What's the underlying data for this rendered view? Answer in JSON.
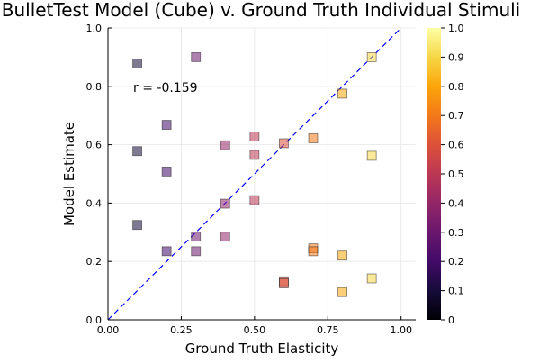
{
  "chart_data": {
    "type": "scatter",
    "title": "BulletTest Model (Cube) v. Ground Truth Individual Stimuli",
    "xlabel": "Ground Truth Elasticity",
    "ylabel": "Model Estimate",
    "xlim": [
      0,
      1.05
    ],
    "ylim": [
      0,
      1
    ],
    "xticks": [
      0,
      0.25,
      0.5,
      0.75,
      1
    ],
    "xtick_labels": [
      "0.00",
      "0.25",
      "0.50",
      "0.75",
      "1.00"
    ],
    "yticks": [
      0,
      0.2,
      0.4,
      0.6,
      0.8,
      1
    ],
    "ytick_labels": [
      "0.0",
      "0.2",
      "0.4",
      "0.6",
      "0.8",
      "1.0"
    ],
    "grid": true,
    "annotation": "r = -0.159",
    "reference_line": {
      "style": "dashed",
      "color": "#0000ff",
      "from": [
        0,
        0
      ],
      "to": [
        1,
        1
      ]
    },
    "colorbar": {
      "colormap": "inferno",
      "range": [
        0,
        1
      ],
      "ticks": [
        0,
        0.1,
        0.2,
        0.3,
        0.4,
        0.5,
        0.6,
        0.7,
        0.8,
        0.9,
        1
      ],
      "tick_labels": [
        "0",
        "0.1",
        "0.2",
        "0.3",
        "0.4",
        "0.5",
        "0.6",
        "0.7",
        "0.8",
        "0.9",
        "1.0"
      ]
    },
    "marker": {
      "shape": "square",
      "alpha": 0.55
    },
    "points": [
      {
        "x": 0.1,
        "y": 0.878
      },
      {
        "x": 0.1,
        "y": 0.578
      },
      {
        "x": 0.1,
        "y": 0.325
      },
      {
        "x": 0.2,
        "y": 0.668
      },
      {
        "x": 0.2,
        "y": 0.508
      },
      {
        "x": 0.2,
        "y": 0.235
      },
      {
        "x": 0.3,
        "y": 0.9
      },
      {
        "x": 0.3,
        "y": 0.285
      },
      {
        "x": 0.3,
        "y": 0.235
      },
      {
        "x": 0.4,
        "y": 0.598
      },
      {
        "x": 0.4,
        "y": 0.398
      },
      {
        "x": 0.4,
        "y": 0.285
      },
      {
        "x": 0.5,
        "y": 0.628
      },
      {
        "x": 0.5,
        "y": 0.565
      },
      {
        "x": 0.5,
        "y": 0.41
      },
      {
        "x": 0.6,
        "y": 0.605
      },
      {
        "x": 0.6,
        "y": 0.132
      },
      {
        "x": 0.6,
        "y": 0.125
      },
      {
        "x": 0.7,
        "y": 0.622
      },
      {
        "x": 0.7,
        "y": 0.245
      },
      {
        "x": 0.7,
        "y": 0.235
      },
      {
        "x": 0.8,
        "y": 0.775
      },
      {
        "x": 0.8,
        "y": 0.22
      },
      {
        "x": 0.8,
        "y": 0.095
      },
      {
        "x": 0.9,
        "y": 0.9
      },
      {
        "x": 0.9,
        "y": 0.562
      },
      {
        "x": 0.9,
        "y": 0.142
      }
    ]
  }
}
